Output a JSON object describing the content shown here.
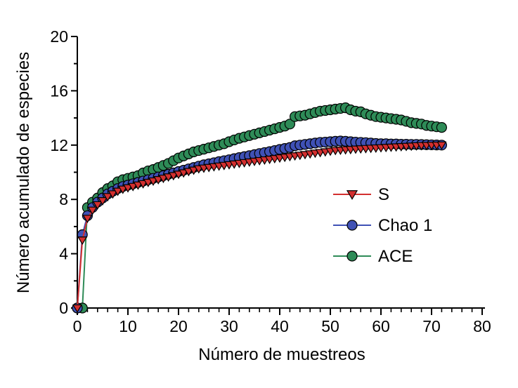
{
  "chart_data": {
    "type": "line",
    "xlabel": "Número de muestreos",
    "ylabel": "Número acumulado de especies",
    "xlim": [
      0,
      80
    ],
    "ylim": [
      0,
      20
    ],
    "xticks": [
      "0",
      "10",
      "20",
      "30",
      "40",
      "50",
      "60",
      "70",
      "80"
    ],
    "yticks": [
      "0",
      "4",
      "8",
      "12",
      "16",
      "20"
    ],
    "grid": false,
    "legend_position": "right",
    "x": [
      0,
      1,
      2,
      3,
      4,
      5,
      6,
      7,
      8,
      9,
      10,
      11,
      12,
      13,
      14,
      15,
      16,
      17,
      18,
      19,
      20,
      21,
      22,
      23,
      24,
      25,
      26,
      27,
      28,
      29,
      30,
      31,
      32,
      33,
      34,
      35,
      36,
      37,
      38,
      39,
      40,
      41,
      42,
      43,
      44,
      45,
      46,
      47,
      48,
      49,
      50,
      51,
      52,
      53,
      54,
      55,
      56,
      57,
      58,
      59,
      60,
      61,
      62,
      63,
      64,
      65,
      66,
      67,
      68,
      69,
      70,
      71,
      72
    ],
    "series": [
      {
        "name": "S",
        "color": "#d32f2f",
        "marker": "triangle-down",
        "values": [
          0,
          5.0,
          6.6,
          7.2,
          7.6,
          7.9,
          8.2,
          8.4,
          8.6,
          8.75,
          8.85,
          8.95,
          9.05,
          9.15,
          9.25,
          9.35,
          9.45,
          9.55,
          9.65,
          9.75,
          9.85,
          9.95,
          10.05,
          10.15,
          10.25,
          10.3,
          10.35,
          10.4,
          10.45,
          10.5,
          10.55,
          10.6,
          10.65,
          10.7,
          10.75,
          10.8,
          10.85,
          10.9,
          10.95,
          11.0,
          11.05,
          11.1,
          11.15,
          11.2,
          11.25,
          11.3,
          11.35,
          11.4,
          11.45,
          11.5,
          11.55,
          11.6,
          11.62,
          11.65,
          11.67,
          11.7,
          11.72,
          11.74,
          11.76,
          11.78,
          11.8,
          11.82,
          11.84,
          11.86,
          11.88,
          11.9,
          11.92,
          11.94,
          11.96,
          11.97,
          11.98,
          11.99,
          12.0
        ]
      },
      {
        "name": "Chao 1",
        "color": "#3f51b5",
        "marker": "circle",
        "values": [
          0,
          5.4,
          6.8,
          7.4,
          7.8,
          8.1,
          8.4,
          8.6,
          8.8,
          8.95,
          9.05,
          9.15,
          9.25,
          9.35,
          9.45,
          9.55,
          9.65,
          9.75,
          9.85,
          9.95,
          10.05,
          10.15,
          10.25,
          10.35,
          10.45,
          10.55,
          10.62,
          10.7,
          10.78,
          10.85,
          10.92,
          11.0,
          11.08,
          11.15,
          11.22,
          11.3,
          11.38,
          11.45,
          11.52,
          11.6,
          11.68,
          11.75,
          11.82,
          11.95,
          12.0,
          12.05,
          12.1,
          12.15,
          12.2,
          12.22,
          12.25,
          12.28,
          12.3,
          12.28,
          12.25,
          12.22,
          12.2,
          12.18,
          12.15,
          12.12,
          12.1,
          12.1,
          12.08,
          12.08,
          12.06,
          12.06,
          12.05,
          12.05,
          12.04,
          12.03,
          12.02,
          12.01,
          12.0
        ]
      },
      {
        "name": "ACE",
        "color": "#2e8b57",
        "marker": "circle",
        "values": [
          0,
          0,
          7.4,
          7.8,
          8.1,
          8.5,
          8.8,
          9.0,
          9.3,
          9.45,
          9.55,
          9.65,
          9.75,
          9.95,
          10.1,
          10.2,
          10.35,
          10.5,
          10.65,
          10.85,
          11.05,
          11.2,
          11.35,
          11.5,
          11.6,
          11.7,
          11.8,
          11.9,
          12.0,
          12.1,
          12.25,
          12.38,
          12.5,
          12.6,
          12.7,
          12.8,
          12.9,
          13.0,
          13.1,
          13.2,
          13.3,
          13.4,
          13.55,
          14.1,
          14.15,
          14.2,
          14.3,
          14.4,
          14.5,
          14.55,
          14.6,
          14.65,
          14.7,
          14.75,
          14.6,
          14.5,
          14.45,
          14.3,
          14.2,
          14.1,
          14.05,
          14.0,
          13.95,
          13.9,
          13.85,
          13.75,
          13.65,
          13.6,
          13.55,
          13.45,
          13.4,
          13.35,
          13.3
        ]
      }
    ]
  }
}
